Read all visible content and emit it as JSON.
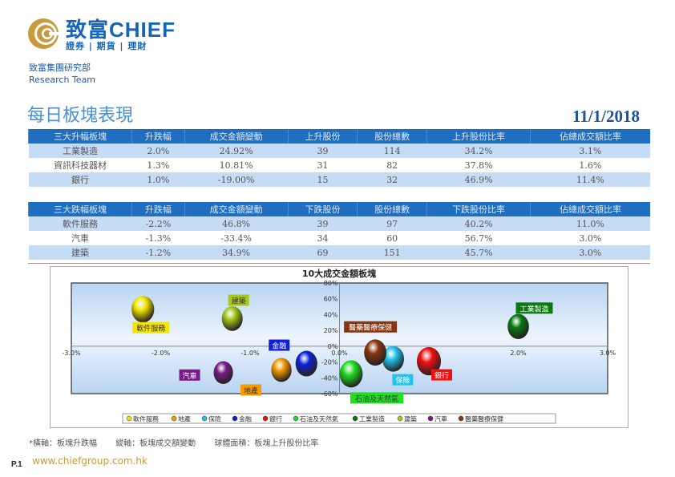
{
  "header": {
    "brand": "致富CHIEF",
    "brand_sub": "證券 | 期貨 | 理財",
    "dept": "致富集團研究部",
    "team": "Research Team"
  },
  "title": "每日板塊表現",
  "date": "11/1/2018",
  "gainers": {
    "headers": [
      "三大升幅板塊",
      "升跌幅",
      "成交金額變動",
      "上升股份",
      "股份總數",
      "上升股份比率",
      "佔總成交額比率"
    ],
    "rows": [
      [
        "工業製造",
        "2.0%",
        "24.92%",
        "39",
        "114",
        "34.2%",
        "3.1%"
      ],
      [
        "資訊科技器材",
        "1.3%",
        "10.81%",
        "31",
        "82",
        "37.8%",
        "1.6%"
      ],
      [
        "銀行",
        "1.0%",
        "-19.00%",
        "15",
        "32",
        "46.9%",
        "11.4%"
      ]
    ]
  },
  "losers": {
    "headers": [
      "三大跌幅板塊",
      "升跌幅",
      "成交金額變動",
      "下跌股份",
      "股份總數",
      "下跌股份比率",
      "佔總成交額比率"
    ],
    "rows": [
      [
        "軟件服務",
        "-2.2%",
        "46.8%",
        "39",
        "97",
        "40.2%",
        "11.0%"
      ],
      [
        "汽車",
        "-1.3%",
        "-33.4%",
        "34",
        "60",
        "56.7%",
        "3.0%"
      ],
      [
        "建築",
        "-1.2%",
        "34.9%",
        "69",
        "151",
        "45.7%",
        "3.0%"
      ]
    ]
  },
  "chart_data": {
    "type": "scatter",
    "title": "10大成交金額板塊",
    "xlabel": "板塊升跌幅",
    "ylabel": "板塊成交額變動",
    "xlim": [
      -3,
      3
    ],
    "ylim": [
      -60,
      80
    ],
    "xticks": [
      "-3.0%",
      "-2.0%",
      "-1.0%",
      "0.0%",
      "1.0%",
      "2.0%",
      "3.0%"
    ],
    "xtick_values": [
      -3,
      -2,
      -1,
      0,
      1,
      2,
      3
    ],
    "yticks": [
      "80%",
      "60%",
      "40%",
      "20%",
      "0%",
      "-20%",
      "-40%",
      "-60%"
    ],
    "ytick_values": [
      80,
      60,
      40,
      20,
      0,
      -20,
      -40,
      -60
    ],
    "legend_position": "bottom",
    "series": [
      {
        "name": "軟件服務",
        "x": -2.2,
        "y": 46.8,
        "size": 40,
        "color": "#f2e600"
      },
      {
        "name": "地產",
        "x": -0.65,
        "y": -30,
        "size": 30,
        "color": "#f59a00"
      },
      {
        "name": "保險",
        "x": 0.6,
        "y": -16,
        "size": 36,
        "color": "#22c3ec"
      },
      {
        "name": "金融",
        "x": -0.37,
        "y": -22,
        "size": 36,
        "color": "#1020d8"
      },
      {
        "name": "銀行",
        "x": 1.0,
        "y": -19,
        "size": 46.9,
        "color": "#f01010"
      },
      {
        "name": "石油及天然氣",
        "x": 0.13,
        "y": -35,
        "size": 42,
        "color": "#22dd22"
      },
      {
        "name": "工業製造",
        "x": 2.0,
        "y": 24.92,
        "size": 34.2,
        "color": "#0a7a10"
      },
      {
        "name": "建築",
        "x": -1.2,
        "y": 34.9,
        "size": 32,
        "color": "#a6c81a"
      },
      {
        "name": "汽車",
        "x": -1.3,
        "y": -33.4,
        "size": 26,
        "color": "#7a1a88"
      },
      {
        "name": "醫藥醫療保健",
        "x": 0.4,
        "y": -8,
        "size": 38,
        "color": "#8a3410"
      }
    ]
  },
  "footnote": [
    "*橫軸：板塊升跌幅",
    "縱軸：板塊成交額變動",
    "球體面積：板塊上升股份比率"
  ],
  "page": "P.1",
  "url": "www.chiefgroup.com.hk"
}
